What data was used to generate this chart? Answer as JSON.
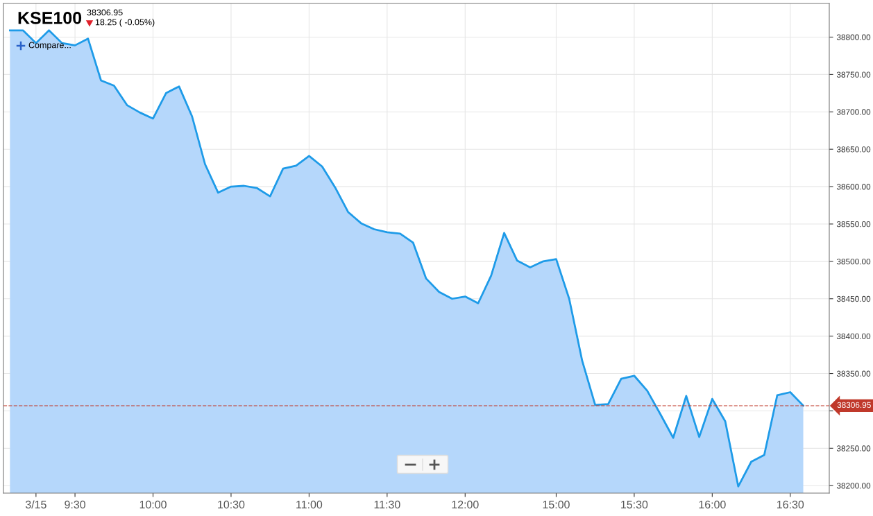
{
  "chart_data": {
    "type": "area",
    "title": "KSE100",
    "subtitle": "38306.95",
    "annotations": [
      "18.25 ( -0.05%)",
      "Compare..."
    ],
    "categories": [
      null,
      null,
      "3/15",
      null,
      null,
      "9:30",
      null,
      null,
      null,
      null,
      null,
      "10:00",
      null,
      null,
      null,
      null,
      null,
      "10:30",
      null,
      null,
      null,
      null,
      null,
      "11:00",
      null,
      null,
      null,
      null,
      null,
      "11:30",
      null,
      null,
      null,
      null,
      null,
      "12:00",
      null,
      null,
      null,
      null,
      null,
      null,
      "15:00",
      null,
      null,
      null,
      null,
      null,
      "15:30",
      null,
      null,
      null,
      null,
      null,
      "16:00",
      null,
      null,
      null,
      null,
      null,
      "16:30",
      null
    ],
    "series": [
      {
        "color": "#1e9be8",
        "values": [
          38809,
          38809,
          38792,
          38809,
          38792,
          38789,
          38798,
          38742,
          38735,
          38709,
          38699,
          38691,
          38725,
          38734,
          38694,
          38630,
          38592,
          38600,
          38601,
          38598,
          38587,
          38624,
          38628,
          38641,
          38627,
          38599,
          38566,
          38551,
          38543,
          38539,
          38537,
          38525,
          38477,
          38459,
          38450,
          38453,
          38444,
          38481,
          38538,
          38501,
          38492,
          38500,
          38503,
          38450,
          38367,
          38308,
          38309,
          38343,
          38347,
          38327,
          38296,
          38264,
          38320,
          38265,
          38316,
          38286,
          38199,
          38232,
          38241,
          38321,
          38325,
          38307
        ]
      }
    ],
    "ylim": [
      38190,
      38845
    ],
    "yticks": [
      {
        "value": 38200,
        "label": "38200.00"
      },
      {
        "value": 38250,
        "label": "38250.00"
      },
      {
        "value": 38300,
        "label": null
      },
      {
        "value": 38350,
        "label": "38350.00"
      },
      {
        "value": 38400,
        "label": "38400.00"
      },
      {
        "value": 38450,
        "label": "38450.00"
      },
      {
        "value": 38500,
        "label": "38500.00"
      },
      {
        "value": 38550,
        "label": "38550.00"
      },
      {
        "value": 38600,
        "label": "38600.00"
      },
      {
        "value": 38650,
        "label": "38650.00"
      },
      {
        "value": 38700,
        "label": "38700.00"
      },
      {
        "value": 38750,
        "label": "38750.00"
      },
      {
        "value": 38800,
        "label": "38800.00"
      }
    ],
    "ref_lines": [
      {
        "axis": "y",
        "value": 38306.95,
        "label": "38306.95",
        "color": "#c0392b",
        "line_style": "dashed"
      }
    ],
    "grid": true,
    "legend": false,
    "marker": "none",
    "line_style": "solid"
  }
}
